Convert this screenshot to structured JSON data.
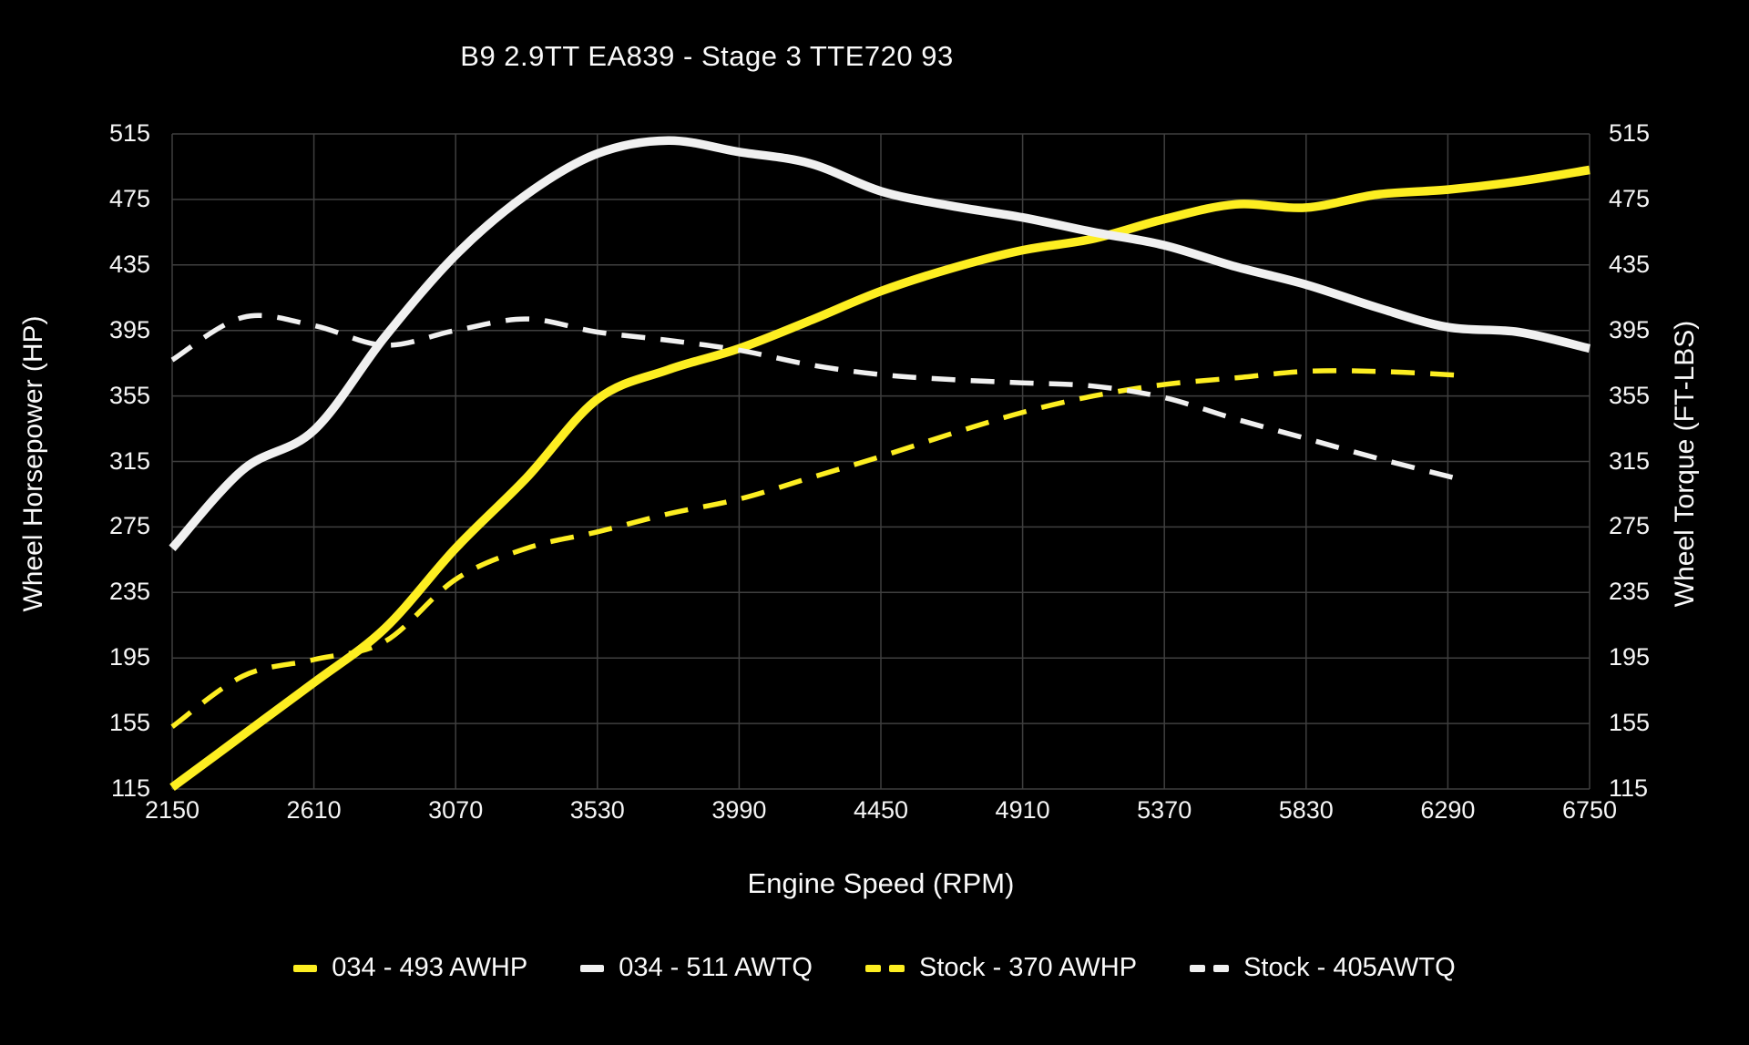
{
  "chart": {
    "title": "B9 2.9TT EA839 - Stage 3 TTE720 93",
    "xlabel": "Engine Speed (RPM)",
    "ylabel_left": "Wheel Horsepower (HP)",
    "ylabel_right": "Wheel Torque (FT-LBS)"
  },
  "colors": {
    "background": "#000000",
    "grid": "#3f3f3f",
    "yellow": "#fdee21",
    "white": "#f0f0f0",
    "text": "#fafafa"
  },
  "chart_data": {
    "type": "line",
    "title": "B9 2.9TT EA839 - Stage 3 TTE720 93",
    "xlabel": "Engine Speed (RPM)",
    "ylabel_left": "Wheel Horsepower (HP)",
    "ylabel_right": "Wheel Torque (FT-LBS)",
    "xlim": [
      2150,
      6750
    ],
    "ylim": [
      115,
      515
    ],
    "x_ticks": [
      2150,
      2610,
      3070,
      3530,
      3990,
      4450,
      4910,
      5370,
      5830,
      6290,
      6750
    ],
    "y_ticks": [
      115,
      155,
      195,
      235,
      275,
      315,
      355,
      395,
      435,
      475,
      515
    ],
    "grid": true,
    "legend_position": "bottom",
    "series": [
      {
        "name": "034 - 493 AWHP",
        "color": "#fdee21",
        "dashed": false,
        "x": [
          2150,
          2380,
          2610,
          2840,
          3070,
          3300,
          3530,
          3760,
          3990,
          4220,
          4450,
          4680,
          4910,
          5140,
          5370,
          5600,
          5830,
          6060,
          6290,
          6520,
          6750
        ],
        "values": [
          116,
          148,
          180,
          213,
          262,
          305,
          353,
          371,
          384,
          401,
          419,
          433,
          444,
          451,
          463,
          472,
          470,
          478,
          481,
          486,
          493
        ]
      },
      {
        "name": "034 - 511 AWTQ",
        "color": "#f0f0f0",
        "dashed": false,
        "x": [
          2150,
          2380,
          2610,
          2840,
          3070,
          3300,
          3530,
          3760,
          3990,
          4220,
          4450,
          4680,
          4910,
          5140,
          5370,
          5600,
          5830,
          6060,
          6290,
          6520,
          6750
        ],
        "values": [
          262,
          310,
          334,
          391,
          441,
          478,
          503,
          511,
          504,
          497,
          480,
          471,
          464,
          455,
          447,
          434,
          423,
          409,
          397,
          394,
          384
        ]
      },
      {
        "name": "Stock - 370 AWHP",
        "color": "#fdee21",
        "dashed": true,
        "x": [
          2150,
          2380,
          2610,
          2840,
          3070,
          3300,
          3530,
          3760,
          3990,
          4220,
          4450,
          4680,
          4910,
          5140,
          5370,
          5600,
          5830,
          6060,
          6290,
          6350
        ],
        "values": [
          153,
          184,
          194,
          205,
          243,
          262,
          272,
          283,
          292,
          305,
          318,
          332,
          345,
          355,
          362,
          366,
          370,
          370,
          368,
          367
        ]
      },
      {
        "name": "Stock - 405AWTQ",
        "color": "#f0f0f0",
        "dashed": true,
        "x": [
          2150,
          2380,
          2610,
          2840,
          3070,
          3300,
          3530,
          3760,
          3990,
          4220,
          4450,
          4680,
          4910,
          5140,
          5370,
          5600,
          5830,
          6060,
          6290,
          6350
        ],
        "values": [
          377,
          403,
          398,
          386,
          395,
          402,
          394,
          389,
          383,
          374,
          368,
          365,
          363,
          361,
          354,
          341,
          329,
          317,
          306,
          303
        ]
      }
    ]
  },
  "legend": {
    "items": [
      {
        "label": "034 - 493 AWHP",
        "color": "#fdee21",
        "dashed": false
      },
      {
        "label": "034 - 511 AWTQ",
        "color": "#f0f0f0",
        "dashed": false
      },
      {
        "label": "Stock - 370 AWHP",
        "color": "#fdee21",
        "dashed": true
      },
      {
        "label": "Stock - 405AWTQ",
        "color": "#f0f0f0",
        "dashed": true
      }
    ]
  }
}
